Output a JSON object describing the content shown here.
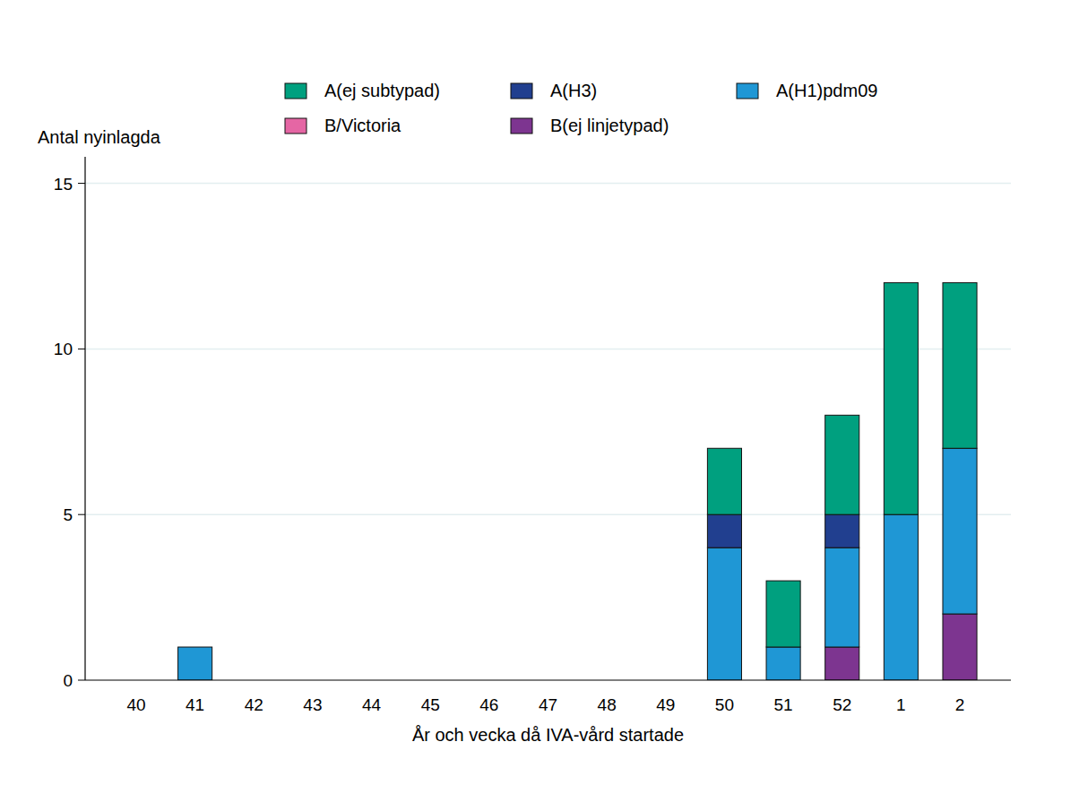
{
  "chart_data": {
    "type": "bar",
    "stacked": true,
    "grid": true,
    "legend": "top",
    "y_label": "Antal nyinlagda",
    "x_label": "År och vecka då IVA-vård startade",
    "categories": [
      "40",
      "41",
      "42",
      "43",
      "44",
      "45",
      "46",
      "47",
      "48",
      "49",
      "50",
      "51",
      "52",
      "1",
      "2"
    ],
    "ylim": [
      0,
      15.8
    ],
    "yticks": [
      0,
      5,
      10,
      15
    ],
    "series": [
      {
        "name": "B(ej linjetypad)",
        "color": "#7d3590",
        "values": [
          0,
          0,
          0,
          0,
          0,
          0,
          0,
          0,
          0,
          0,
          0,
          0,
          1,
          0,
          2
        ]
      },
      {
        "name": "B/Victoria",
        "color": "#e566a4",
        "values": [
          0,
          0,
          0,
          0,
          0,
          0,
          0,
          0,
          0,
          0,
          0,
          0,
          0,
          0,
          0
        ]
      },
      {
        "name": "A(H1)pdm09",
        "color": "#1f97d5",
        "values": [
          0,
          1,
          0,
          0,
          0,
          0,
          0,
          0,
          0,
          0,
          4,
          1,
          3,
          5,
          5
        ]
      },
      {
        "name": "A(H3)",
        "color": "#213f8f",
        "values": [
          0,
          0,
          0,
          0,
          0,
          0,
          0,
          0,
          0,
          0,
          1,
          0,
          1,
          0,
          0
        ]
      },
      {
        "name": "A(ej subtypad)",
        "color": "#00a07f",
        "values": [
          0,
          0,
          0,
          0,
          0,
          0,
          0,
          0,
          0,
          0,
          2,
          2,
          3,
          7,
          5
        ]
      }
    ]
  }
}
